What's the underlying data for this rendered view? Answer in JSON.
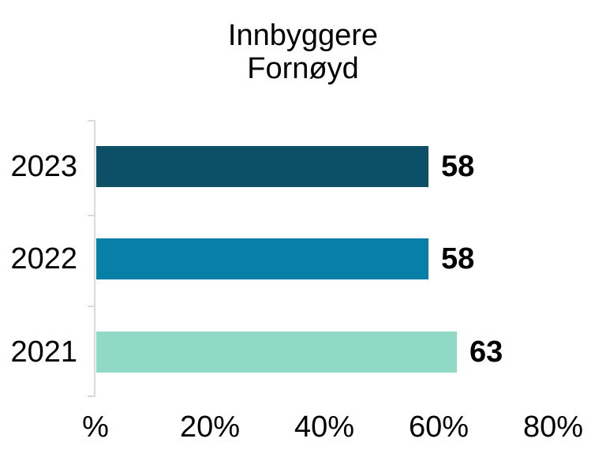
{
  "chart_data": {
    "type": "bar",
    "orientation": "horizontal",
    "title_lines": [
      "Innbyggere",
      "Fornøyd"
    ],
    "categories": [
      "2023",
      "2022",
      "2021"
    ],
    "values": [
      58,
      58,
      63
    ],
    "value_labels": [
      "58",
      "58",
      "63"
    ],
    "bar_colors": [
      "#0d4f66",
      "#0680a6",
      "#90d9c5"
    ],
    "x_tick_labels": [
      "%",
      "20%",
      "40%",
      "60%",
      "80%"
    ],
    "x_tick_values": [
      0,
      20,
      40,
      60,
      80
    ],
    "xlim": [
      0,
      80
    ],
    "axis_color": "#d9d9d9",
    "text_color": "#000000",
    "grid": false,
    "legend": false
  }
}
